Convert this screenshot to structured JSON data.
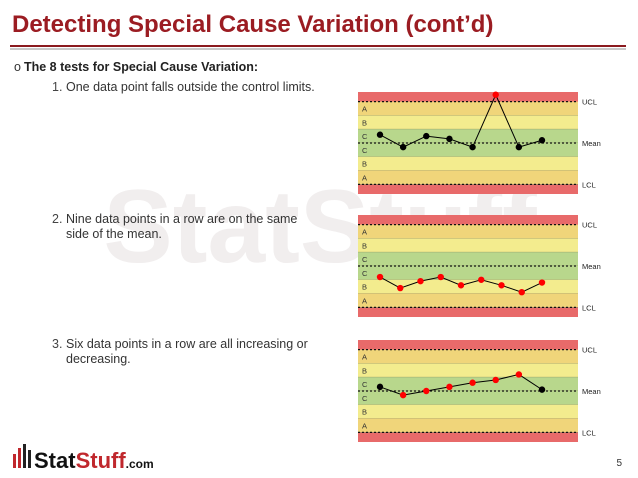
{
  "header": {
    "title": "Detecting Special Cause Variation (cont’d)"
  },
  "intro": "The 8 tests for Special Cause Variation:",
  "items": [
    {
      "number": "1.",
      "text": "One data point falls outside the control limits.",
      "chart": {
        "type": "line",
        "zone_labels": [
          "A",
          "B",
          "C",
          "C",
          "B",
          "A"
        ],
        "limits": [
          {
            "value": 3,
            "label": "UCL"
          },
          {
            "value": 0,
            "label": "Mean"
          },
          {
            "value": -3,
            "label": "LCL"
          }
        ],
        "ylim": [
          -3.7,
          3.7
        ],
        "series": [
          {
            "color": "#000000",
            "values": [
              0.6,
              -0.3,
              0.5,
              0.3,
              -0.3,
              3.5,
              -0.3,
              0.2
            ],
            "point_colors": [
              "#000000",
              "#000000",
              "#000000",
              "#000000",
              "#000000",
              "#ff0000",
              "#000000",
              "#000000"
            ]
          }
        ]
      }
    },
    {
      "number": "2.",
      "text": "Nine data points in a row are on the same side of the mean.",
      "chart": {
        "type": "line",
        "zone_labels": [
          "A",
          "B",
          "C",
          "C",
          "B",
          "A"
        ],
        "limits": [
          {
            "value": 3,
            "label": "UCL"
          },
          {
            "value": 0,
            "label": "Mean"
          },
          {
            "value": -3,
            "label": "LCL"
          }
        ],
        "ylim": [
          -3.7,
          3.7
        ],
        "series": [
          {
            "color": "#000000",
            "values": [
              -0.8,
              -1.6,
              -1.1,
              -0.8,
              -1.4,
              -1.0,
              -1.4,
              -1.9,
              -1.2
            ],
            "point_colors": [
              "#ff0000",
              "#ff0000",
              "#ff0000",
              "#ff0000",
              "#ff0000",
              "#ff0000",
              "#ff0000",
              "#ff0000",
              "#ff0000"
            ]
          }
        ]
      }
    },
    {
      "number": "3.",
      "text": "Six data points in a row are all increasing or decreasing.",
      "chart": {
        "type": "line",
        "zone_labels": [
          "A",
          "B",
          "C",
          "C",
          "B",
          "A"
        ],
        "limits": [
          {
            "value": 3,
            "label": "UCL"
          },
          {
            "value": 0,
            "label": "Mean"
          },
          {
            "value": -3,
            "label": "LCL"
          }
        ],
        "ylim": [
          -3.7,
          3.7
        ],
        "series": [
          {
            "color": "#000000",
            "values": [
              0.3,
              -0.3,
              0.0,
              0.3,
              0.6,
              0.8,
              1.2,
              0.1
            ],
            "point_colors": [
              "#000000",
              "#ff0000",
              "#ff0000",
              "#ff0000",
              "#ff0000",
              "#ff0000",
              "#ff0000",
              "#000000"
            ]
          }
        ]
      }
    }
  ],
  "page_number": "5",
  "logo": {
    "stat": "Stat",
    "stuff": "Stuff",
    "com": ".com"
  },
  "watermark": "StatStuff"
}
